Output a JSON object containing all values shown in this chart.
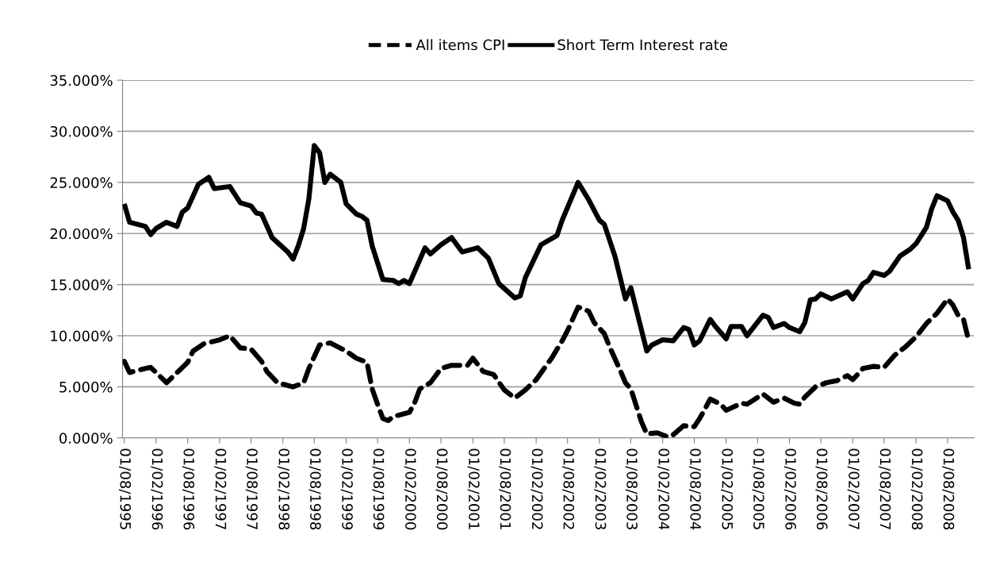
{
  "chart_data": {
    "type": "line",
    "series": [
      {
        "name": "All items CPI",
        "color": "#000000",
        "line_style": "dashed",
        "x": [
          "1995-08",
          "1995-09",
          "1995-12",
          "1996-01",
          "1996-02",
          "1996-04",
          "1996-06",
          "1996-08",
          "1996-09",
          "1996-11",
          "1997-02",
          "1997-04",
          "1997-06",
          "1997-08",
          "1997-10",
          "1997-11",
          "1998-01",
          "1998-04",
          "1998-06",
          "1998-07",
          "1998-09",
          "1998-11",
          "1999-02",
          "1999-04",
          "1999-06",
          "1999-07",
          "1999-08",
          "1999-09",
          "1999-10",
          "1999-11",
          "2000-02",
          "2000-03",
          "2000-04",
          "2000-06",
          "2000-08",
          "2000-10",
          "2001-01",
          "2001-02",
          "2001-04",
          "2001-06",
          "2001-08",
          "2001-10",
          "2001-12",
          "2002-02",
          "2002-04",
          "2002-05",
          "2002-07",
          "2002-08",
          "2002-10",
          "2002-12",
          "2003-01",
          "2003-03",
          "2003-04",
          "2003-06",
          "2003-07",
          "2003-08",
          "2003-10",
          "2003-11",
          "2004-01",
          "2004-03",
          "2004-04",
          "2004-06",
          "2004-08",
          "2004-09",
          "2004-11",
          "2005-01",
          "2005-02",
          "2005-05",
          "2005-06",
          "2005-09",
          "2005-11",
          "2006-01",
          "2006-03",
          "2006-04",
          "2006-05",
          "2006-07",
          "2006-09",
          "2006-11",
          "2007-01",
          "2007-02",
          "2007-04",
          "2007-06",
          "2007-08",
          "2007-10",
          "2007-12",
          "2008-02",
          "2008-04",
          "2008-06",
          "2008-08",
          "2008-09",
          "2008-10",
          "2008-11",
          "2008-12"
        ],
        "values": [
          7.5,
          6.4,
          6.8,
          6.9,
          6.4,
          5.4,
          6.4,
          7.4,
          8.5,
          9.2,
          9.6,
          10.0,
          8.8,
          8.7,
          7.5,
          6.5,
          5.4,
          5.0,
          5.4,
          6.8,
          9.1,
          9.3,
          8.5,
          7.8,
          7.4,
          4.8,
          3.3,
          1.9,
          1.7,
          2.1,
          2.5,
          3.4,
          4.8,
          5.4,
          6.8,
          7.1,
          7.1,
          7.8,
          6.5,
          6.2,
          4.7,
          3.9,
          4.7,
          5.7,
          7.1,
          7.8,
          9.5,
          10.5,
          12.8,
          12.4,
          11.3,
          10.2,
          8.9,
          6.6,
          5.4,
          4.8,
          1.6,
          0.4,
          0.5,
          0.1,
          0.3,
          1.2,
          1.1,
          1.9,
          3.8,
          3.3,
          2.7,
          3.4,
          3.3,
          4.3,
          3.5,
          3.9,
          3.4,
          3.3,
          4.0,
          5.0,
          5.4,
          5.6,
          6.1,
          5.7,
          6.8,
          7.0,
          6.9,
          8.1,
          8.9,
          9.9,
          11.2,
          12.2,
          13.6,
          13.0,
          12.0,
          11.6,
          9.5
        ]
      },
      {
        "name": "Short Term Interest rate",
        "color": "#000000",
        "line_style": "solid",
        "x": [
          "1995-08",
          "1995-09",
          "1995-12",
          "1996-01",
          "1996-02",
          "1996-04",
          "1996-06",
          "1996-07",
          "1996-08",
          "1996-10",
          "1996-12",
          "1997-01",
          "1997-04",
          "1997-06",
          "1997-08",
          "1997-09",
          "1997-10",
          "1997-12",
          "1998-03",
          "1998-04",
          "1998-05",
          "1998-06",
          "1998-07",
          "1998-08",
          "1998-09",
          "1998-10",
          "1998-11",
          "1999-01",
          "1999-02",
          "1999-04",
          "1999-05",
          "1999-06",
          "1999-07",
          "1999-09",
          "1999-11",
          "1999-12",
          "2000-01",
          "2000-02",
          "2000-05",
          "2000-06",
          "2000-08",
          "2000-10",
          "2000-12",
          "2001-03",
          "2001-05",
          "2001-07",
          "2001-10",
          "2001-11",
          "2001-12",
          "2002-03",
          "2002-06",
          "2002-07",
          "2002-10",
          "2002-12",
          "2003-02",
          "2003-03",
          "2003-05",
          "2003-07",
          "2003-08",
          "2003-11",
          "2003-12",
          "2004-02",
          "2004-04",
          "2004-06",
          "2004-07",
          "2004-08",
          "2004-09",
          "2004-11",
          "2004-12",
          "2005-02",
          "2005-03",
          "2005-05",
          "2005-06",
          "2005-09",
          "2005-10",
          "2005-11",
          "2006-01",
          "2006-02",
          "2006-04",
          "2006-05",
          "2006-06",
          "2006-07",
          "2006-08",
          "2006-10",
          "2007-01",
          "2007-02",
          "2007-04",
          "2007-05",
          "2007-06",
          "2007-08",
          "2007-09",
          "2007-11",
          "2008-01",
          "2008-02",
          "2008-04",
          "2008-05",
          "2008-06",
          "2008-08",
          "2008-09",
          "2008-10",
          "2008-11",
          "2008-12"
        ],
        "values": [
          22.9,
          21.1,
          20.7,
          19.9,
          20.5,
          21.1,
          20.7,
          22.1,
          22.5,
          24.8,
          25.5,
          24.4,
          24.6,
          23.0,
          22.7,
          22.0,
          21.9,
          19.6,
          18.2,
          17.5,
          18.8,
          20.5,
          23.4,
          28.6,
          27.9,
          25.0,
          25.8,
          25.0,
          22.9,
          21.9,
          21.7,
          21.3,
          18.8,
          15.5,
          15.4,
          15.1,
          15.4,
          15.1,
          18.6,
          18.0,
          18.9,
          19.6,
          18.2,
          18.6,
          17.6,
          15.1,
          13.7,
          13.9,
          15.7,
          18.9,
          19.8,
          21.3,
          25.0,
          23.3,
          21.3,
          20.9,
          17.8,
          13.6,
          14.7,
          8.5,
          9.1,
          9.6,
          9.5,
          10.8,
          10.6,
          9.1,
          9.5,
          11.6,
          10.9,
          9.7,
          10.9,
          10.9,
          10.0,
          12.0,
          11.8,
          10.8,
          11.2,
          10.8,
          10.4,
          11.3,
          13.5,
          13.6,
          14.1,
          13.6,
          14.3,
          13.6,
          15.1,
          15.4,
          16.2,
          15.9,
          16.3,
          17.8,
          18.5,
          19.0,
          20.6,
          22.4,
          23.7,
          23.2,
          22.1,
          21.3,
          19.6,
          16.5
        ]
      }
    ],
    "xlim": [
      "1995-07-22",
      "2009-01-01"
    ],
    "xticks": [
      {
        "value": "1995-08-01",
        "label": "01/08/1995"
      },
      {
        "value": "1996-02-01",
        "label": "01/02/1996"
      },
      {
        "value": "1996-08-01",
        "label": "01/08/1996"
      },
      {
        "value": "1997-02-01",
        "label": "01/02/1997"
      },
      {
        "value": "1997-08-01",
        "label": "01/08/1997"
      },
      {
        "value": "1998-02-01",
        "label": "01/02/1998"
      },
      {
        "value": "1998-08-01",
        "label": "01/08/1998"
      },
      {
        "value": "1999-02-01",
        "label": "01/02/1999"
      },
      {
        "value": "1999-08-01",
        "label": "01/08/1999"
      },
      {
        "value": "2000-02-01",
        "label": "01/02/2000"
      },
      {
        "value": "2000-08-01",
        "label": "01/08/2000"
      },
      {
        "value": "2001-02-01",
        "label": "01/02/2001"
      },
      {
        "value": "2001-08-01",
        "label": "01/08/2001"
      },
      {
        "value": "2002-02-01",
        "label": "01/02/2002"
      },
      {
        "value": "2002-08-01",
        "label": "01/08/2002"
      },
      {
        "value": "2003-02-01",
        "label": "01/02/2003"
      },
      {
        "value": "2003-08-01",
        "label": "01/08/2003"
      },
      {
        "value": "2004-02-01",
        "label": "01/02/2004"
      },
      {
        "value": "2004-08-01",
        "label": "01/08/2004"
      },
      {
        "value": "2005-02-01",
        "label": "01/02/2005"
      },
      {
        "value": "2005-08-01",
        "label": "01/08/2005"
      },
      {
        "value": "2006-02-01",
        "label": "01/02/2006"
      },
      {
        "value": "2006-08-01",
        "label": "01/08/2006"
      },
      {
        "value": "2007-02-01",
        "label": "01/02/2007"
      },
      {
        "value": "2007-08-01",
        "label": "01/08/2007"
      },
      {
        "value": "2008-02-01",
        "label": "01/02/2008"
      },
      {
        "value": "2008-08-01",
        "label": "01/08/2008"
      }
    ],
    "ylim": [
      0,
      35
    ],
    "yticks": [
      {
        "value": 0,
        "label": "0.000%"
      },
      {
        "value": 5,
        "label": "5.000%"
      },
      {
        "value": 10,
        "label": "10.000%"
      },
      {
        "value": 15,
        "label": "15.000%"
      },
      {
        "value": 20,
        "label": "20.000%"
      },
      {
        "value": 25,
        "label": "25.000%"
      },
      {
        "value": 30,
        "label": "30.000%"
      },
      {
        "value": 35,
        "label": "35.000%"
      }
    ],
    "grid": "y",
    "legend": "top",
    "marker": "none"
  }
}
